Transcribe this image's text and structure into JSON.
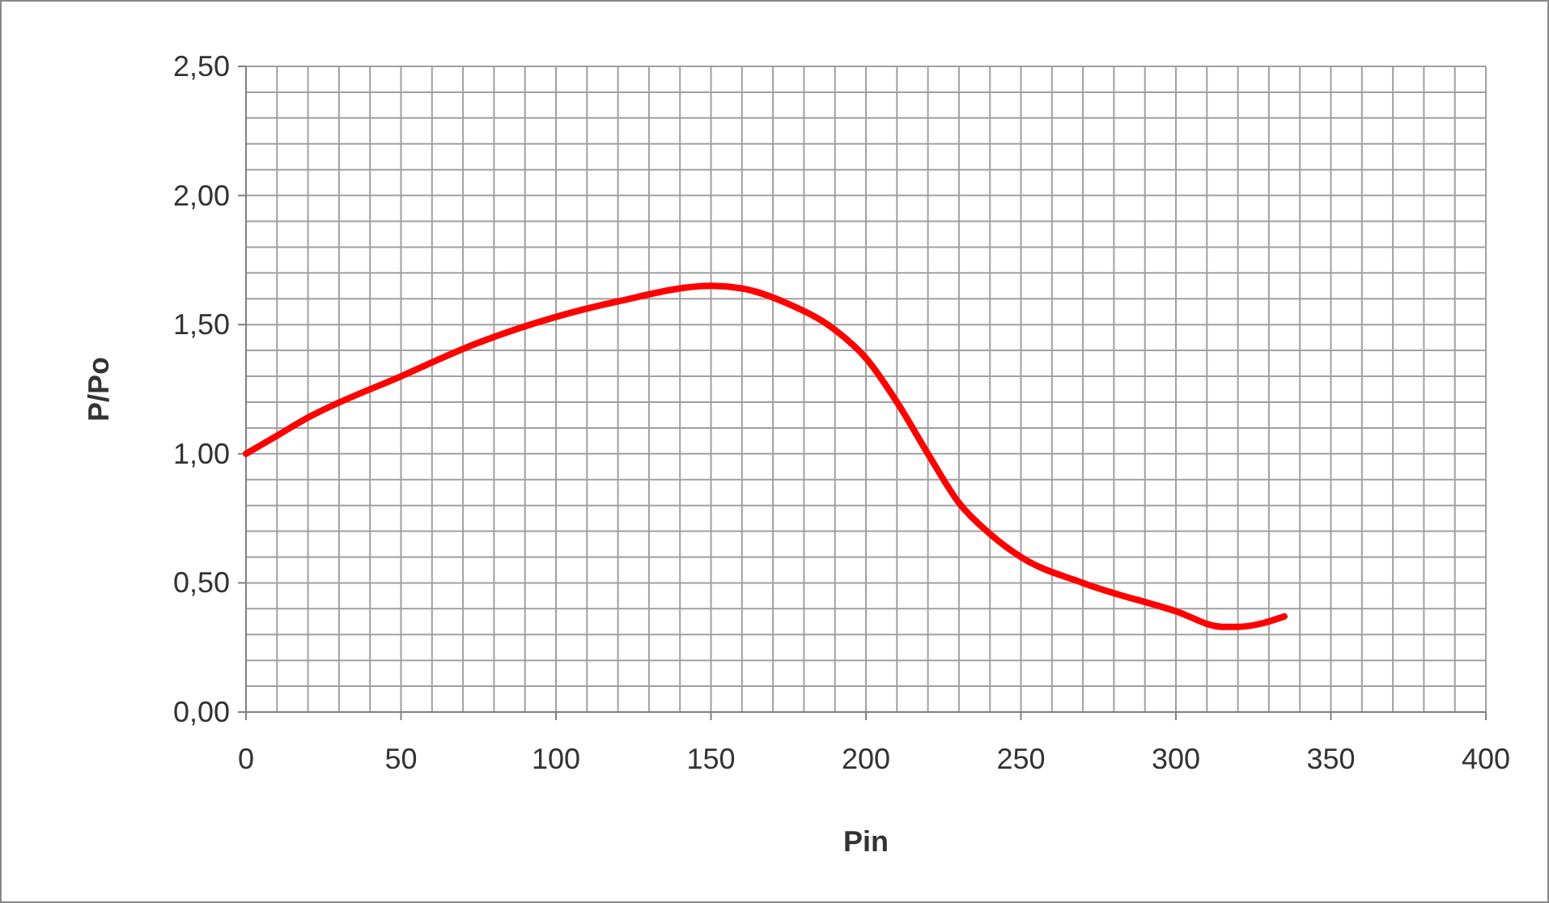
{
  "chart_data": {
    "type": "line",
    "xlabel": "Pin",
    "ylabel": "P/Po",
    "x": [
      0,
      10,
      20,
      50,
      75,
      100,
      120,
      150,
      160,
      175,
      190,
      200,
      210,
      220,
      230,
      240,
      250,
      270,
      300,
      315,
      320,
      335
    ],
    "series": [
      {
        "color": "#ff0000",
        "values": [
          1.0,
          1.07,
          1.14,
          1.3,
          1.43,
          1.53,
          1.59,
          1.65,
          1.64,
          1.58,
          1.48,
          1.37,
          1.2,
          1.0,
          0.81,
          0.69,
          0.6,
          0.5,
          0.39,
          0.33,
          0.33,
          0.37
        ]
      }
    ],
    "xlim": [
      0,
      400
    ],
    "ylim": [
      0,
      2.5
    ],
    "xticks": [
      0,
      {
        "value": 10,
        "label": null
      },
      {
        "value": 20,
        "label": null
      },
      {
        "value": 30,
        "label": null
      },
      {
        "value": 40,
        "label": null
      },
      50,
      {
        "value": 60,
        "label": null
      },
      {
        "value": 70,
        "label": null
      },
      {
        "value": 80,
        "label": null
      },
      {
        "value": 90,
        "label": null
      },
      100,
      {
        "value": 110,
        "label": null
      },
      {
        "value": 120,
        "label": null
      },
      {
        "value": 130,
        "label": null
      },
      {
        "value": 140,
        "label": null
      },
      150,
      {
        "value": 160,
        "label": null
      },
      {
        "value": 170,
        "label": null
      },
      {
        "value": 180,
        "label": null
      },
      {
        "value": 190,
        "label": null
      },
      200,
      {
        "value": 210,
        "label": null
      },
      {
        "value": 220,
        "label": null
      },
      {
        "value": 230,
        "label": null
      },
      {
        "value": 240,
        "label": null
      },
      250,
      {
        "value": 260,
        "label": null
      },
      {
        "value": 270,
        "label": null
      },
      {
        "value": 280,
        "label": null
      },
      {
        "value": 290,
        "label": null
      },
      300,
      {
        "value": 310,
        "label": null
      },
      {
        "value": 320,
        "label": null
      },
      {
        "value": 330,
        "label": null
      },
      {
        "value": 340,
        "label": null
      },
      350,
      {
        "value": 360,
        "label": null
      },
      {
        "value": 370,
        "label": null
      },
      {
        "value": 380,
        "label": null
      },
      {
        "value": 390,
        "label": null
      },
      400
    ],
    "yticks": [
      {
        "value": 0,
        "label": "0,00"
      },
      {
        "value": 0.1,
        "label": null
      },
      {
        "value": 0.2,
        "label": null
      },
      {
        "value": 0.3,
        "label": null
      },
      {
        "value": 0.4,
        "label": null
      },
      {
        "value": 0.5,
        "label": "0,50"
      },
      {
        "value": 0.6,
        "label": null
      },
      {
        "value": 0.7,
        "label": null
      },
      {
        "value": 0.8,
        "label": null
      },
      {
        "value": 0.9,
        "label": null
      },
      {
        "value": 1,
        "label": "1,00"
      },
      {
        "value": 1.1,
        "label": null
      },
      {
        "value": 1.2,
        "label": null
      },
      {
        "value": 1.3,
        "label": null
      },
      {
        "value": 1.4,
        "label": null
      },
      {
        "value": 1.5,
        "label": "1,50"
      },
      {
        "value": 1.6,
        "label": null
      },
      {
        "value": 1.7,
        "label": null
      },
      {
        "value": 1.8,
        "label": null
      },
      {
        "value": 1.9,
        "label": null
      },
      {
        "value": 2,
        "label": "2,00"
      },
      {
        "value": 2.1,
        "label": null
      },
      {
        "value": 2.2,
        "label": null
      },
      {
        "value": 2.3,
        "label": null
      },
      {
        "value": 2.4,
        "label": null
      },
      {
        "value": 2.5,
        "label": "2,50"
      }
    ],
    "grid": true,
    "marker": "none",
    "line_style": "solid"
  }
}
